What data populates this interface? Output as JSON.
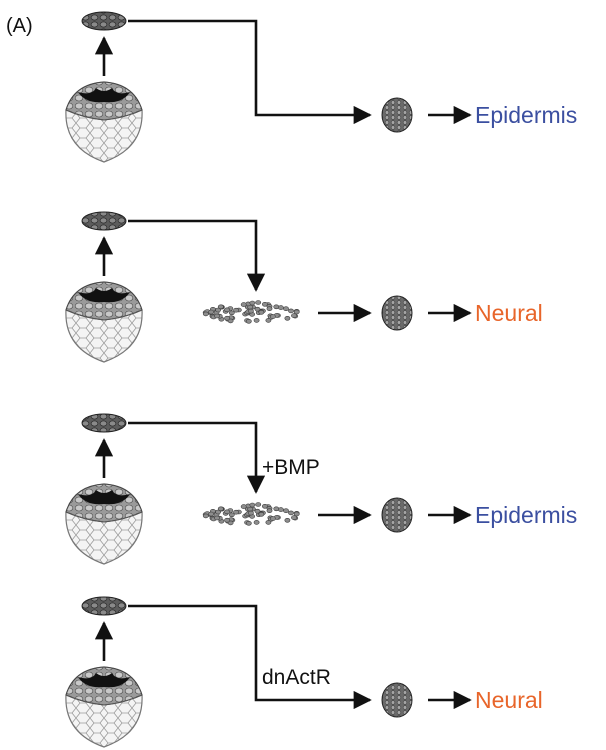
{
  "figure": {
    "panel_label": "(A)",
    "colors": {
      "epidermis": "#3b4fa0",
      "neural": "#e8652a",
      "line": "#111111",
      "cap_tissue": "#6f6f6f",
      "lower_cells": "#f2f2f2"
    },
    "rows": [
      {
        "path": "direct",
        "treatment": "",
        "outcome": "Epidermis",
        "outcome_type": "epidermis"
      },
      {
        "path": "dissociated",
        "treatment": "",
        "outcome": "Neural",
        "outcome_type": "neural"
      },
      {
        "path": "dissociated",
        "treatment": "+BMP",
        "outcome": "Epidermis",
        "outcome_type": "epidermis"
      },
      {
        "path": "direct",
        "treatment": "dnActR",
        "outcome": "Neural",
        "outcome_type": "neural"
      }
    ]
  }
}
